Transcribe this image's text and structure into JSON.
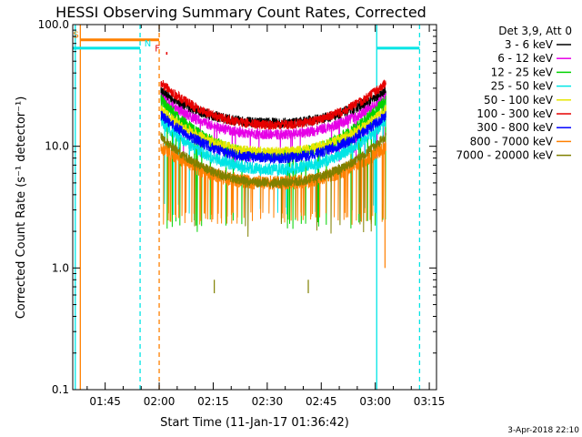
{
  "chart_data": {
    "type": "line",
    "title": "HESSI Observing Summary Count Rates, Corrected",
    "xlabel": "Start Time (11-Jan-17 01:36:42)",
    "ylabel": "Corrected Count Rate (s⁻¹ detector⁻¹)",
    "y_scale": "log",
    "ylim": [
      0.1,
      100
    ],
    "x_range_minutes": [
      -0.7,
      100.3
    ],
    "x_ticks": [
      {
        "label": "01:45",
        "minutes": 8.3
      },
      {
        "label": "02:00",
        "minutes": 23.3
      },
      {
        "label": "02:15",
        "minutes": 38.3
      },
      {
        "label": "02:30",
        "minutes": 53.3
      },
      {
        "label": "02:45",
        "minutes": 68.3
      },
      {
        "label": "03:00",
        "minutes": 83.3
      },
      {
        "label": "03:15",
        "minutes": 98.3
      }
    ],
    "y_ticks": [
      {
        "label": "0.1",
        "value": 0.1
      },
      {
        "label": "1.0",
        "value": 1
      },
      {
        "label": "10.0",
        "value": 10
      },
      {
        "label": "100.0",
        "value": 100
      }
    ],
    "legend_header": "Det 3,9, Att 0",
    "legend_position": "right",
    "series": [
      {
        "name": "3 - 6 keV",
        "color": "#000000",
        "edge": 28,
        "center": 15.5,
        "noise": 0.045,
        "flicker": 0.0,
        "floor": null
      },
      {
        "name": "6 - 12 keV",
        "color": "#e600e6",
        "edge": 25,
        "center": 12.5,
        "noise": 0.045,
        "flicker": 0.04,
        "floor": 8
      },
      {
        "name": "12 - 25 keV",
        "color": "#00d200",
        "edge": 24,
        "center": 8.5,
        "noise": 0.05,
        "flicker": 0.05,
        "floor": 2.2
      },
      {
        "name": "25 - 50 keV",
        "color": "#00e5e5",
        "edge": 16,
        "center": 6.5,
        "noise": 0.05,
        "flicker": 0.03,
        "floor": 3
      },
      {
        "name": "50 - 100 keV",
        "color": "#e6e600",
        "edge": 20,
        "center": 9,
        "noise": 0.04,
        "flicker": 0.0,
        "floor": null
      },
      {
        "name": "100 - 300 keV",
        "color": "#e60000",
        "edge": 33,
        "center": 15,
        "noise": 0.04,
        "flicker": 0.0,
        "floor": null
      },
      {
        "name": "300 - 800 keV",
        "color": "#0000ff",
        "edge": 18,
        "center": 8,
        "noise": 0.045,
        "flicker": 0.0,
        "floor": null
      },
      {
        "name": "800 - 7000 keV",
        "color": "#ff8000",
        "edge": 10,
        "center": 5,
        "noise": 0.06,
        "flicker": 0.12,
        "floor": 2.5
      },
      {
        "name": "7000 - 20000 keV",
        "color": "#808000",
        "edge": 12,
        "center": 5,
        "noise": 0.04,
        "flicker": 0.02,
        "floor": 2
      }
    ],
    "data_window_minutes": [
      23.8,
      86.2
    ],
    "flags": [
      {
        "label": "S",
        "color": "#ff8000",
        "level": 75,
        "x_start": 1.4,
        "x_end": 23.3,
        "label_x": -0.6
      },
      {
        "label": "N",
        "color": "#00e5e5",
        "level": 64,
        "x_start": -0.7,
        "x_end": 18.0,
        "label_x": 19.2
      },
      {
        "label": "N",
        "color": "#00e5e5",
        "level": 64,
        "x_start": 83.7,
        "x_end": 95.6,
        "label_x": null
      },
      {
        "label": "F",
        "color": "#e60000",
        "level": 58,
        "x_start": 25.2,
        "x_end": 25.6,
        "label_x": 22.1
      }
    ],
    "markers": [
      {
        "color": "#00e5e5",
        "style": "solid",
        "x": 0.0
      },
      {
        "color": "#ff8000",
        "style": "solid",
        "x": 1.4
      },
      {
        "color": "#00e5e5",
        "style": "dashed",
        "x": 18.0
      },
      {
        "color": "#ff8000",
        "style": "dashed",
        "x": 23.3
      },
      {
        "color": "#00e5e5",
        "style": "solid",
        "x": 83.7
      },
      {
        "color": "#00e5e5",
        "style": "dashed",
        "x": 95.6
      }
    ],
    "spikes": [
      {
        "color": "#808000",
        "x": 38.6,
        "values": [
          0.62,
          0.8
        ]
      },
      {
        "color": "#808000",
        "x": 64.7,
        "values": [
          0.62,
          0.8
        ]
      },
      {
        "color": "#ff8000",
        "x": 86.0,
        "values": [
          1.0,
          10
        ]
      }
    ],
    "footer_date": "3-Apr-2018 22:10"
  }
}
